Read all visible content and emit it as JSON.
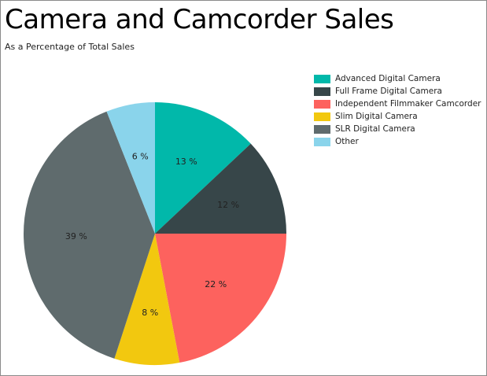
{
  "chart_data": {
    "type": "pie",
    "title": "Camera and Camcorder Sales",
    "subtitle": "As a Percentage of Total Sales",
    "legend_position": "top-right",
    "series": [
      {
        "name": "Advanced Digital Camera",
        "value": 13,
        "label": "13 %",
        "color": "#01b8aa"
      },
      {
        "name": "Full Frame Digital Camera",
        "value": 12,
        "label": "12 %",
        "color": "#374649"
      },
      {
        "name": "Independent Filmmaker Camcorder",
        "value": 22,
        "label": "22 %",
        "color": "#fd625e"
      },
      {
        "name": "Slim Digital Camera",
        "value": 8,
        "label": "8 %",
        "color": "#f2c80f"
      },
      {
        "name": "SLR Digital Camera",
        "value": 39,
        "label": "39 %",
        "color": "#5f6b6d"
      },
      {
        "name": "Other",
        "value": 6,
        "label": "6 %",
        "color": "#8ad4eb"
      }
    ]
  }
}
